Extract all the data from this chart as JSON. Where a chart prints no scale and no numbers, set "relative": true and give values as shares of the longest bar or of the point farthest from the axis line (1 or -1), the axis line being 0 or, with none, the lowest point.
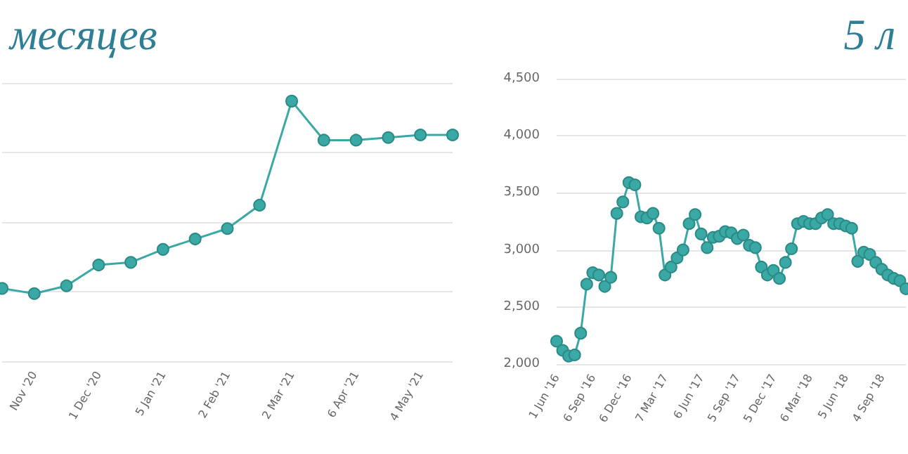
{
  "chart_data": [
    {
      "type": "line",
      "title": "месяцев",
      "relative": true,
      "color": "#3aa9a5",
      "marker": "circle",
      "grid": "y",
      "categories": [
        null,
        "Nov '20",
        null,
        "1 Dec '20",
        null,
        "5 Jan '21",
        null,
        "2 Feb '21",
        null,
        "2 Mar '21",
        null,
        "6 Apr '21",
        null,
        "4 May '21",
        null
      ],
      "values": [
        0.28,
        0.26,
        0.29,
        0.37,
        0.38,
        0.43,
        0.47,
        0.51,
        0.6,
        1,
        0.85,
        0.85,
        0.86,
        0.87,
        0.87
      ]
    },
    {
      "type": "line",
      "title": "5 л",
      "color": "#3aa9a5",
      "marker": "circle",
      "grid": "y",
      "ylim": [
        2000,
        4500
      ],
      "yticks": [
        {
          "value": 2000,
          "label": "2,000"
        },
        {
          "value": 2500,
          "label": "2,500"
        },
        {
          "value": 3000,
          "label": "3,000"
        },
        {
          "value": 3500,
          "label": "3,500"
        },
        {
          "value": 4000,
          "label": "4,000"
        },
        {
          "value": 4500,
          "label": "4,500"
        }
      ],
      "categories": [
        "1 Jun '16",
        null,
        null,
        null,
        null,
        null,
        "6 Sep '16",
        null,
        null,
        null,
        null,
        null,
        "6 Dec '16",
        null,
        null,
        null,
        null,
        null,
        "7 Mar '17",
        null,
        null,
        null,
        null,
        null,
        "6 Jun '17",
        null,
        null,
        null,
        null,
        null,
        "5 Sep '17",
        null,
        null,
        null,
        null,
        null,
        "5 Dec '17",
        null,
        null,
        null,
        null,
        null,
        "6 Mar '18",
        null,
        null,
        null,
        null,
        null,
        "5 Jun '18",
        null,
        null,
        null,
        null,
        null,
        "4 Sep '18",
        null,
        null,
        null,
        null
      ],
      "values": [
        2200,
        2120,
        2070,
        2080,
        2270,
        2700,
        2800,
        2780,
        2680,
        2760,
        3320,
        3420,
        3590,
        3570,
        3290,
        3280,
        3320,
        3190,
        2780,
        2850,
        2930,
        3000,
        3230,
        3310,
        3140,
        3020,
        3110,
        3120,
        3160,
        3150,
        3100,
        3130,
        3040,
        3020,
        2850,
        2780,
        2820,
        2750,
        2890,
        3010,
        3230,
        3250,
        3230,
        3230,
        3280,
        3310,
        3230,
        3230,
        3210,
        3190,
        2900,
        2980,
        2960,
        2890,
        2830,
        2780,
        2750,
        2730,
        2660
      ]
    }
  ]
}
